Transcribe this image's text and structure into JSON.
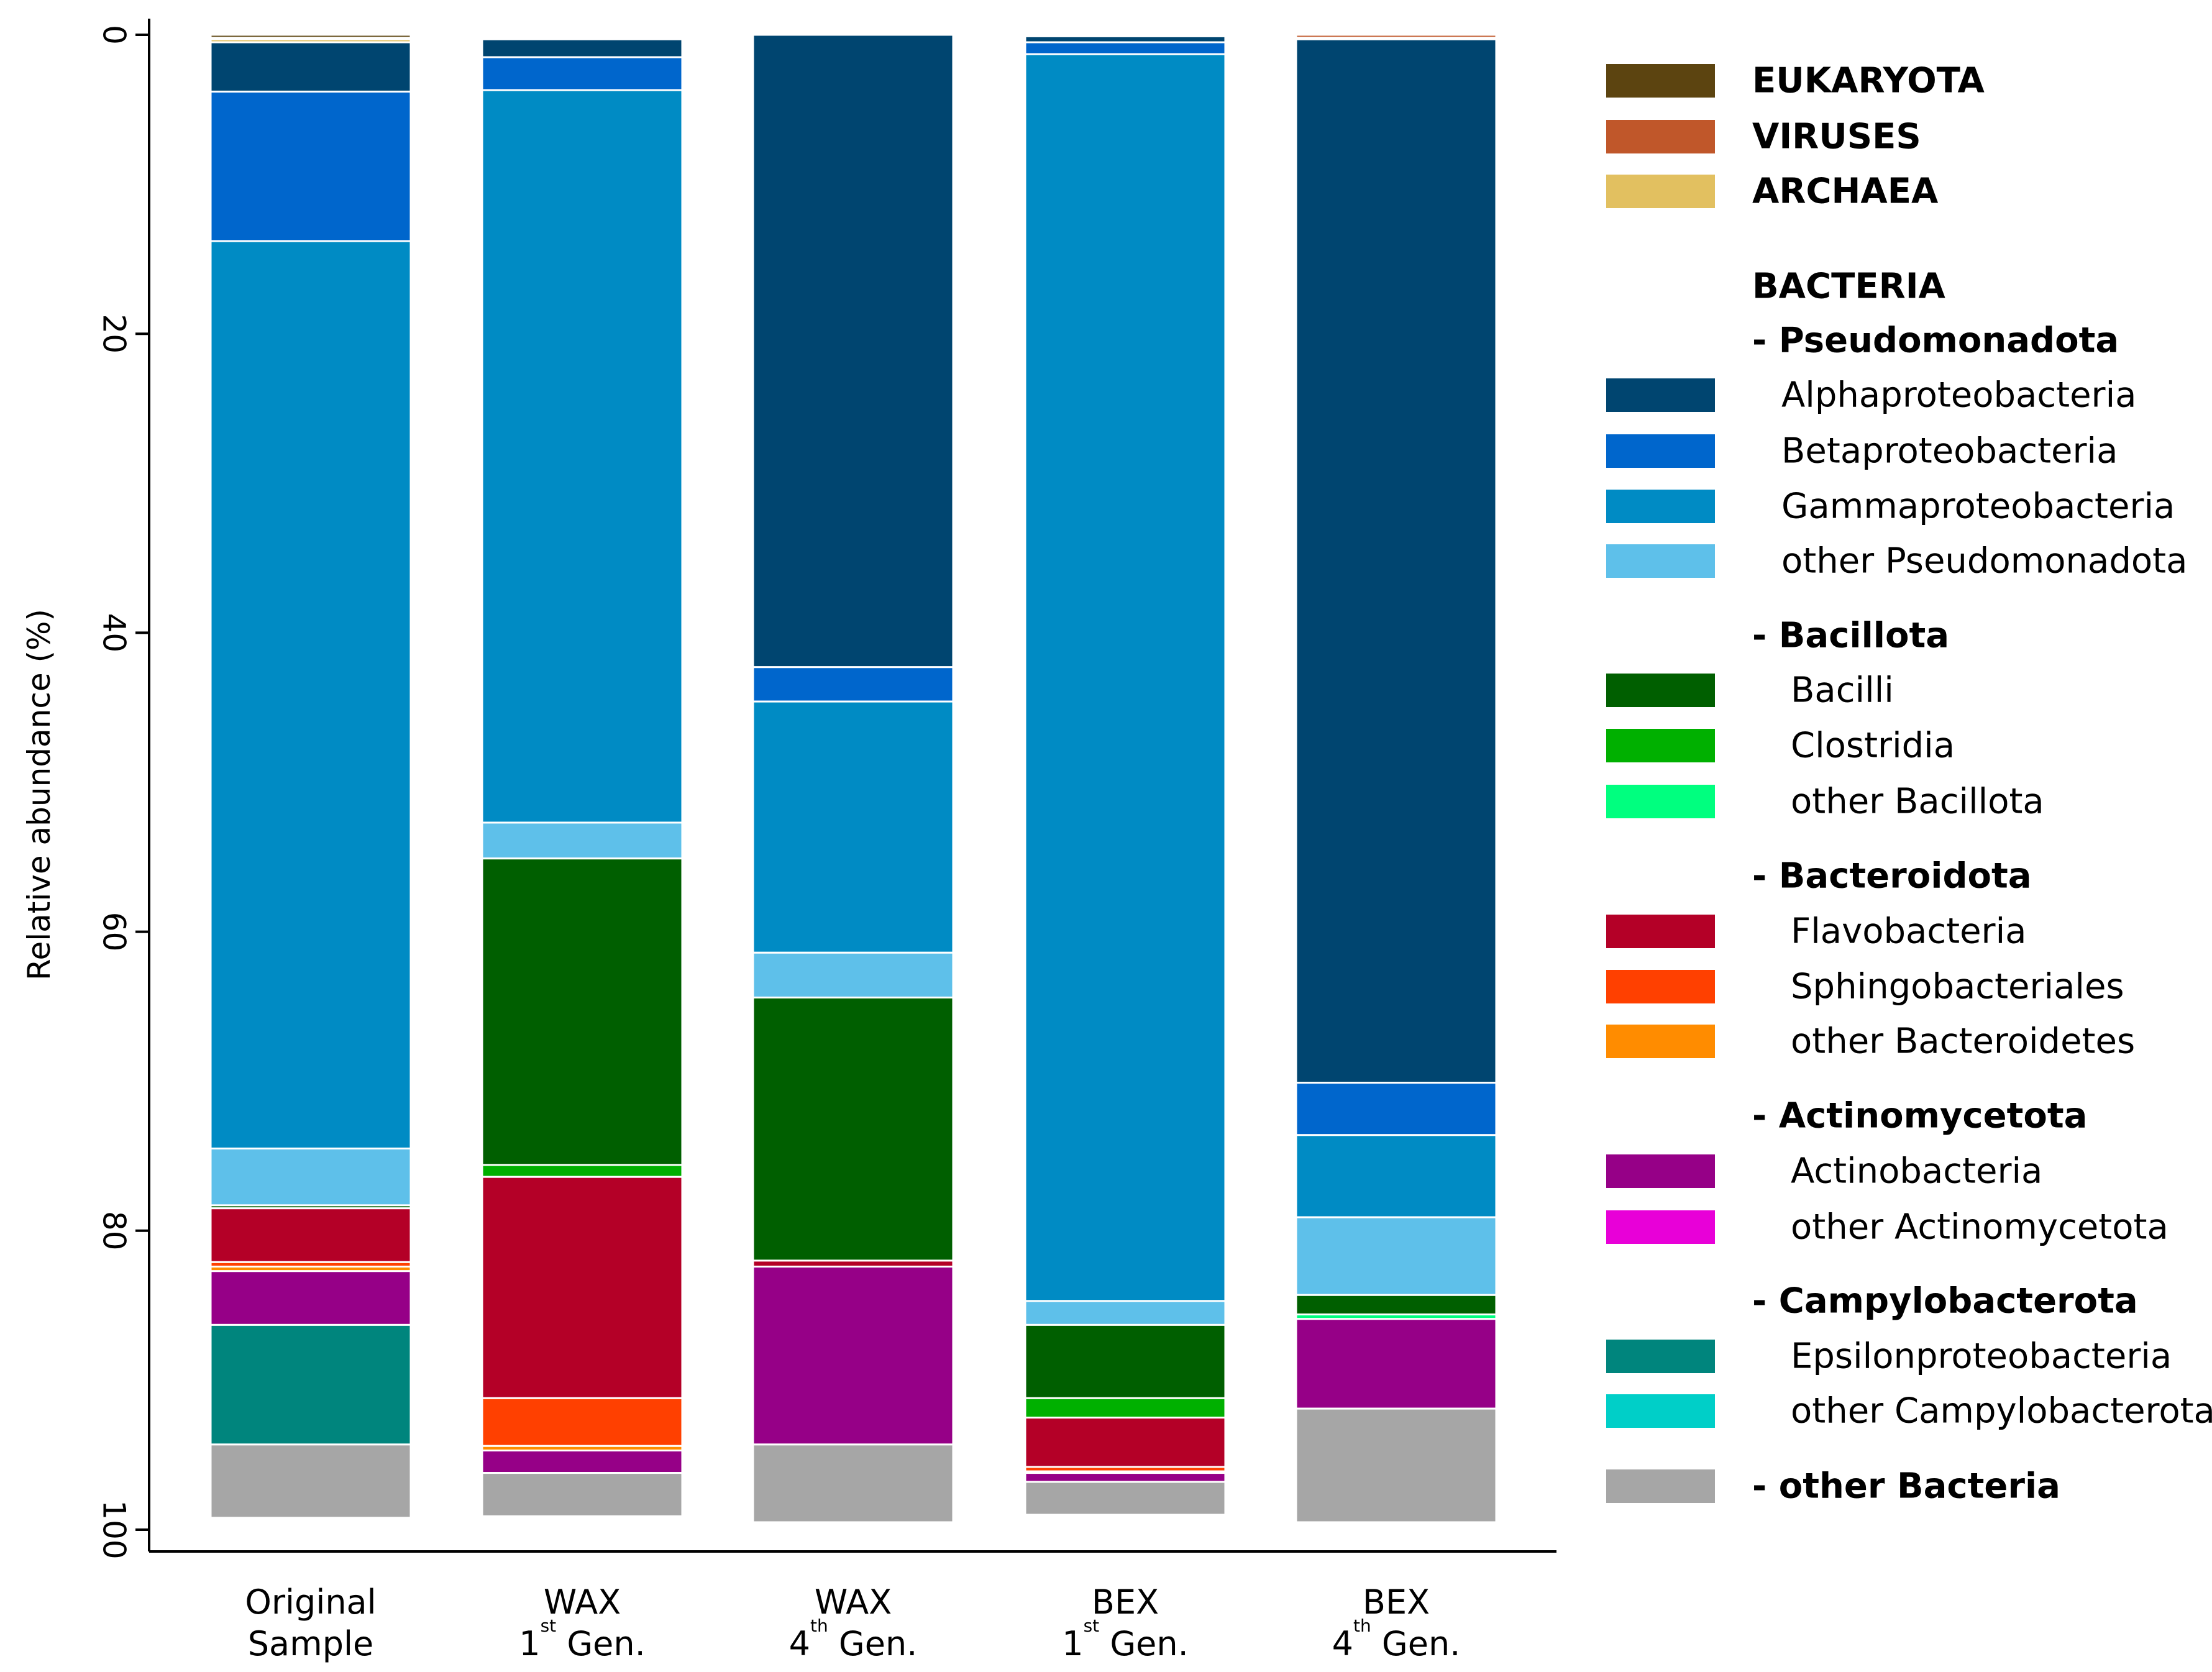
{
  "chart_data": {
    "type": "bar",
    "stacked": true,
    "orientation": "vertical",
    "y_inverted": true,
    "ylabel": "Relative abundance (%)",
    "ylim": [
      0,
      100
    ],
    "yticks": [
      "0",
      "20",
      "40",
      "60",
      "80",
      "100"
    ],
    "grid": false,
    "legend_position": "right",
    "categories": [
      {
        "line1": "Original",
        "line2": "Sample"
      },
      {
        "line1": "WAX",
        "line2_prefix": "1",
        "sup": "st",
        "line2": "Gen."
      },
      {
        "line1": "WAX",
        "line2_prefix": "4",
        "sup": "th",
        "line2": "Gen."
      },
      {
        "line1": "BEX",
        "line2_prefix": "1",
        "sup": "st",
        "line2": "Gen."
      },
      {
        "line1": "BEX",
        "line2_prefix": "4",
        "sup": "th",
        "line2": "Gen."
      }
    ],
    "series": [
      {
        "name": "EUKARYOTA",
        "color": "#5c4410",
        "values": [
          0.2,
          0.1,
          0.0,
          0.0,
          0.0
        ]
      },
      {
        "name": "VIRUSES",
        "color": "#c0572a",
        "values": [
          0.1,
          0.1,
          0.0,
          0.0,
          0.2
        ]
      },
      {
        "name": "ARCHAEA",
        "color": "#e2c060",
        "values": [
          0.2,
          0.1,
          0.0,
          0.1,
          0.1
        ]
      },
      {
        "name": "Alphaproteobacteria",
        "color": "#004570",
        "values": [
          3.3,
          1.2,
          42.3,
          0.4,
          69.8
        ]
      },
      {
        "name": "Betaproteobacteria",
        "color": "#0066cc",
        "values": [
          10.0,
          2.2,
          2.3,
          0.8,
          3.5
        ]
      },
      {
        "name": "Gammaproteobacteria",
        "color": "#008bc4",
        "values": [
          60.7,
          49.0,
          16.8,
          83.4,
          5.5
        ]
      },
      {
        "name": "other Pseudomonadota",
        "color": "#5ec0ea",
        "values": [
          3.8,
          2.4,
          3.0,
          1.6,
          5.2
        ]
      },
      {
        "name": "Bacilli",
        "color": "#005f00",
        "values": [
          0.2,
          20.5,
          17.6,
          4.9,
          1.3
        ]
      },
      {
        "name": "Clostridia",
        "color": "#00b000",
        "values": [
          0.0,
          0.8,
          0.0,
          1.3,
          0.0
        ]
      },
      {
        "name": "other Bacillota",
        "color": "#00ff7f",
        "values": [
          0.0,
          0.0,
          0.0,
          0.0,
          0.3
        ]
      },
      {
        "name": "Flavobacteria",
        "color": "#b40027",
        "values": [
          3.6,
          14.8,
          0.4,
          3.3,
          0.0
        ]
      },
      {
        "name": "Sphingobacteriales",
        "color": "#ff4000",
        "values": [
          0.3,
          3.2,
          0.0,
          0.3,
          0.0
        ]
      },
      {
        "name": "other Bacteroidetes",
        "color": "#ff8c00",
        "values": [
          0.3,
          0.3,
          0.0,
          0.1,
          0.0
        ]
      },
      {
        "name": "Actinobacteria",
        "color": "#960087",
        "values": [
          3.6,
          1.5,
          11.9,
          0.6,
          6.0
        ]
      },
      {
        "name": "other Actinomycetota",
        "color": "#e800d8",
        "values": [
          0.0,
          0.0,
          0.0,
          0.0,
          0.0
        ]
      },
      {
        "name": "Epsilonproteobacteria",
        "color": "#00857d",
        "values": [
          8.0,
          0.0,
          0.0,
          0.0,
          0.0
        ]
      },
      {
        "name": "other Campylobacterota",
        "color": "#00cfc8",
        "values": [
          0.0,
          0.0,
          0.0,
          0.0,
          0.0
        ]
      },
      {
        "name": "other Bacteria",
        "color": "#a6a6a6",
        "values": [
          4.9,
          2.9,
          5.2,
          2.2,
          7.6
        ]
      }
    ],
    "legend": [
      {
        "label": "EUKARYOTA",
        "swatch": "#5c4410",
        "bold": true,
        "indent": 0
      },
      {
        "label": "VIRUSES",
        "swatch": "#c0572a",
        "bold": true,
        "indent": 0
      },
      {
        "label": "ARCHAEA",
        "swatch": "#e2c060",
        "bold": true,
        "indent": 0
      },
      {
        "label": "BACTERIA",
        "swatch": null,
        "bold": true,
        "indent": 0
      },
      {
        "label": "- Pseudomonadota",
        "swatch": null,
        "bold": true,
        "indent": 0
      },
      {
        "label": "Alphaproteobacteria",
        "swatch": "#004570",
        "bold": false,
        "indent": 1
      },
      {
        "label": "Betaproteobacteria",
        "swatch": "#0066cc",
        "bold": false,
        "indent": 1
      },
      {
        "label": "Gammaproteobacteria",
        "swatch": "#008bc4",
        "bold": false,
        "indent": 1
      },
      {
        "label": "other Pseudomonadota",
        "swatch": "#5ec0ea",
        "bold": false,
        "indent": 1
      },
      {
        "label": "- Bacillota",
        "swatch": null,
        "bold": true,
        "indent": 0
      },
      {
        "label": "Bacilli",
        "swatch": "#005f00",
        "bold": false,
        "indent": 2
      },
      {
        "label": "Clostridia",
        "swatch": "#00b000",
        "bold": false,
        "indent": 2
      },
      {
        "label": "other Bacillota",
        "swatch": "#00ff7f",
        "bold": false,
        "indent": 2
      },
      {
        "label": "- Bacteroidota",
        "swatch": null,
        "bold": true,
        "indent": 0
      },
      {
        "label": "Flavobacteria",
        "swatch": "#b40027",
        "bold": false,
        "indent": 2
      },
      {
        "label": "Sphingobacteriales",
        "swatch": "#ff4000",
        "bold": false,
        "indent": 2
      },
      {
        "label": "other Bacteroidetes",
        "swatch": "#ff8c00",
        "bold": false,
        "indent": 2
      },
      {
        "label": "- Actinomycetota",
        "swatch": null,
        "bold": true,
        "indent": 0
      },
      {
        "label": "Actinobacteria",
        "swatch": "#960087",
        "bold": false,
        "indent": 2
      },
      {
        "label": "other Actinomycetota",
        "swatch": "#e800d8",
        "bold": false,
        "indent": 2
      },
      {
        "label": "- Campylobacterota",
        "swatch": null,
        "bold": true,
        "indent": 0
      },
      {
        "label": "Epsilonproteobacteria",
        "swatch": "#00857d",
        "bold": false,
        "indent": 2
      },
      {
        "label": "other Campylobacterota",
        "swatch": "#00cfc8",
        "bold": false,
        "indent": 2
      },
      {
        "label": "- other Bacteria",
        "swatch": "#a6a6a6",
        "bold": true,
        "indent": 0
      }
    ]
  }
}
